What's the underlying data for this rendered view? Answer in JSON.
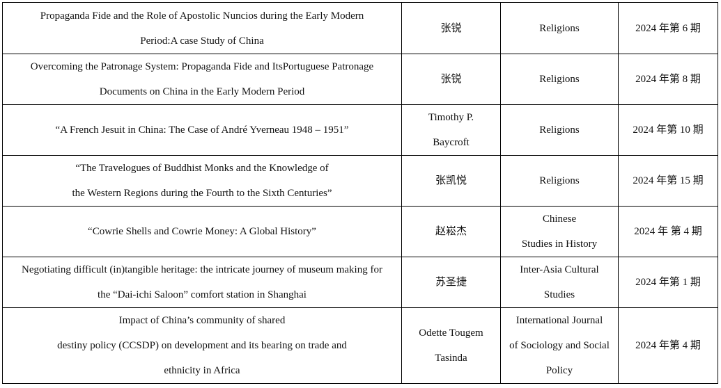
{
  "table": {
    "rows": [
      [
        [
          "Propaganda Fide and the Role of Apostolic Nuncios during the Early Modern",
          "Period:A case Study of China"
        ],
        [
          "张锐"
        ],
        [
          "Religions"
        ],
        [
          "2024 年第 6 期"
        ]
      ],
      [
        [
          "Overcoming the Patronage System: Propaganda Fide and ItsPortuguese Patronage",
          "Documents on China in the Early Modern Period"
        ],
        [
          "张锐"
        ],
        [
          "Religions"
        ],
        [
          "2024 年第 8 期"
        ]
      ],
      [
        [
          "“A French Jesuit in China: The Case of André Yverneau 1948 – 1951”"
        ],
        [
          "Timothy P.",
          "Baycroft"
        ],
        [
          "Religions"
        ],
        [
          "2024 年第 10 期"
        ]
      ],
      [
        [
          "“The Travelogues of Buddhist Monks and the Knowledge of",
          "the Western Regions during the Fourth to the Sixth Centuries”"
        ],
        [
          "张凯悦"
        ],
        [
          "Religions"
        ],
        [
          "2024 年第 15 期"
        ]
      ],
      [
        [
          "“Cowrie Shells and Cowrie Money: A Global History”"
        ],
        [
          "赵崧杰"
        ],
        [
          "Chinese",
          "Studies in History"
        ],
        [
          "2024 年 第 4 期"
        ]
      ],
      [
        [
          "Negotiating difficult (in)tangible heritage: the intricate journey of museum making for",
          "the “Dai-ichi Saloon” comfort station in Shanghai"
        ],
        [
          "苏圣捷"
        ],
        [
          "Inter-Asia Cultural",
          "Studies"
        ],
        [
          "2024 年第 1 期"
        ]
      ],
      [
        [
          "Impact of China’s community of shared",
          "destiny policy (CCSDP) on development and its bearing on trade and",
          "ethnicity in Africa"
        ],
        [
          "Odette Tougem",
          "Tasinda"
        ],
        [
          "International Journal",
          "of Sociology and Social",
          "Policy"
        ],
        [
          "2024 年第 4 期"
        ]
      ]
    ]
  }
}
